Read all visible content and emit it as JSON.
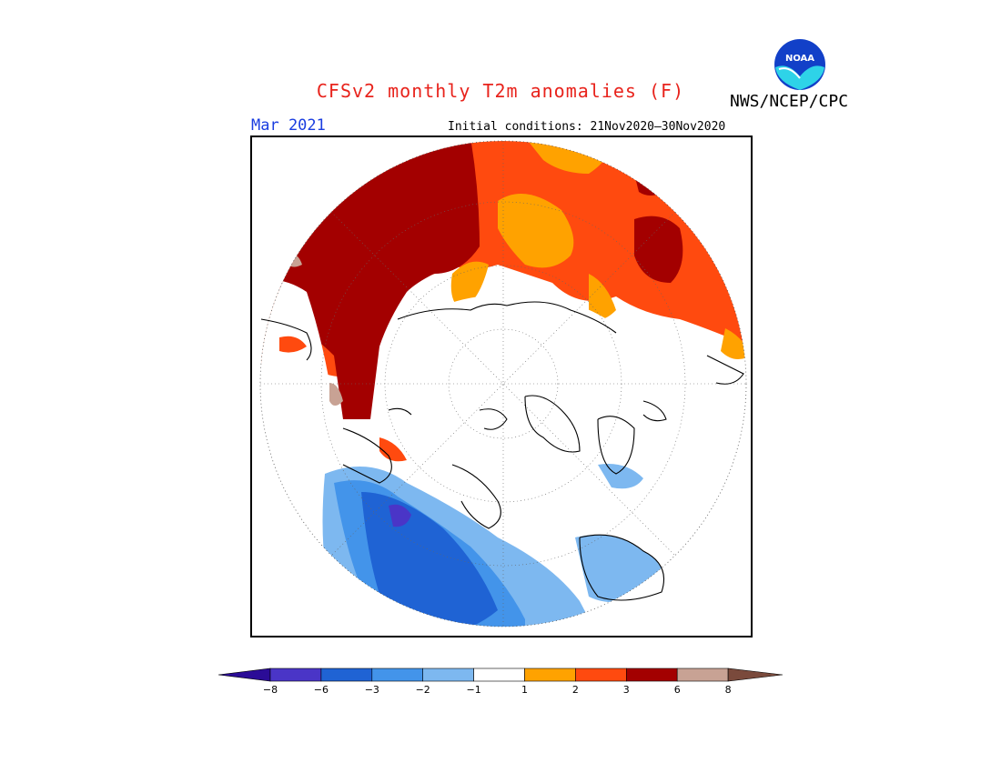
{
  "title": "CFSv2 monthly T2m anomalies (F)",
  "agency": "NWS/NCEP/CPC",
  "logo": {
    "icon": "noaa-logo",
    "text": "NOAA"
  },
  "month": "Mar 2021",
  "initial_conditions": "Initial conditions: 21Nov2020–30Nov2020",
  "colorbar": {
    "ticks": [
      "−8",
      "−6",
      "−3",
      "−2",
      "−1",
      "1",
      "2",
      "3",
      "6",
      "8"
    ],
    "colors": [
      "#2b0c97",
      "#4a35c7",
      "#1f63d4",
      "#4394ea",
      "#7db8f0",
      "#ffffff",
      "#ffa200",
      "#ff4a0f",
      "#a30000",
      "#c8a294",
      "#7a4a3c"
    ]
  }
}
